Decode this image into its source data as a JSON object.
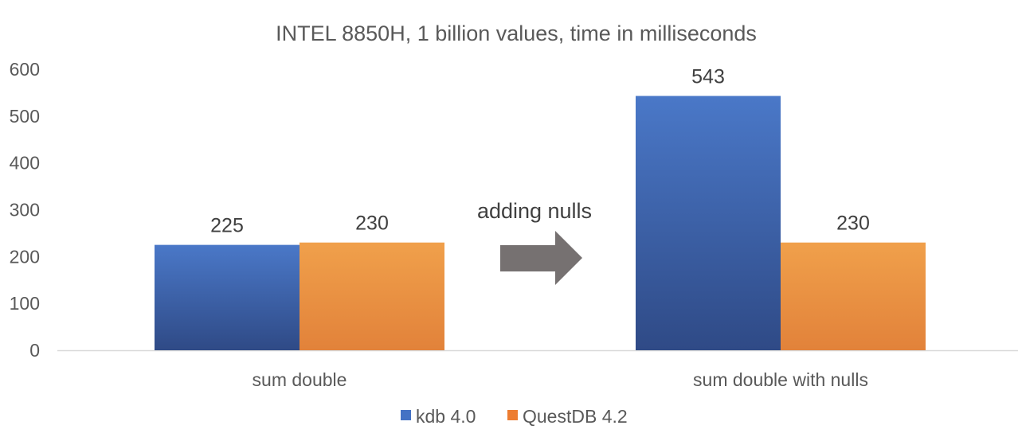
{
  "chart_data": {
    "type": "bar",
    "title": "INTEL 8850H, 1 billion values, time in milliseconds",
    "categories": [
      "sum double",
      "sum double with nulls"
    ],
    "series": [
      {
        "name": "kdb 4.0",
        "values": [
          225,
          543
        ],
        "color": "#4472C4"
      },
      {
        "name": "QuestDB 4.2",
        "values": [
          230,
          230
        ],
        "color": "#ED7D31"
      }
    ],
    "ylim": [
      0,
      600
    ],
    "yticks": [
      0,
      100,
      200,
      300,
      400,
      500,
      600
    ],
    "grid": false,
    "legend_position": "bottom",
    "annotation": {
      "text": "adding nulls",
      "icon": "right-arrow-icon"
    }
  }
}
